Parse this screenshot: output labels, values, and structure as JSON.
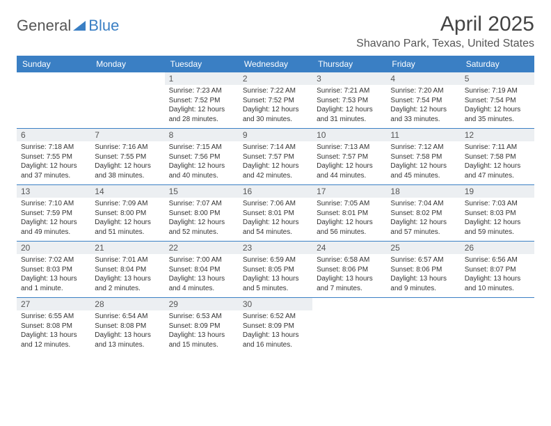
{
  "logo": {
    "part1": "General",
    "part2": "Blue"
  },
  "title": "April 2025",
  "location": "Shavano Park, Texas, United States",
  "colors": {
    "header_bg": "#3a7fc4",
    "header_fg": "#ffffff",
    "daynum_bg": "#eceff2",
    "text": "#333333",
    "rule": "#3a7fc4"
  },
  "layout": {
    "columns": 7,
    "col_width_pct": 14.28,
    "font_family": "Arial",
    "title_fontsize": 30,
    "location_fontsize": 16,
    "th_fontsize": 12,
    "cell_fontsize": 10
  },
  "weekdays": [
    "Sunday",
    "Monday",
    "Tuesday",
    "Wednesday",
    "Thursday",
    "Friday",
    "Saturday"
  ],
  "leading_blanks": 2,
  "days": [
    {
      "n": 1,
      "sunrise": "7:23 AM",
      "sunset": "7:52 PM",
      "daylight": "12 hours and 28 minutes."
    },
    {
      "n": 2,
      "sunrise": "7:22 AM",
      "sunset": "7:52 PM",
      "daylight": "12 hours and 30 minutes."
    },
    {
      "n": 3,
      "sunrise": "7:21 AM",
      "sunset": "7:53 PM",
      "daylight": "12 hours and 31 minutes."
    },
    {
      "n": 4,
      "sunrise": "7:20 AM",
      "sunset": "7:54 PM",
      "daylight": "12 hours and 33 minutes."
    },
    {
      "n": 5,
      "sunrise": "7:19 AM",
      "sunset": "7:54 PM",
      "daylight": "12 hours and 35 minutes."
    },
    {
      "n": 6,
      "sunrise": "7:18 AM",
      "sunset": "7:55 PM",
      "daylight": "12 hours and 37 minutes."
    },
    {
      "n": 7,
      "sunrise": "7:16 AM",
      "sunset": "7:55 PM",
      "daylight": "12 hours and 38 minutes."
    },
    {
      "n": 8,
      "sunrise": "7:15 AM",
      "sunset": "7:56 PM",
      "daylight": "12 hours and 40 minutes."
    },
    {
      "n": 9,
      "sunrise": "7:14 AM",
      "sunset": "7:57 PM",
      "daylight": "12 hours and 42 minutes."
    },
    {
      "n": 10,
      "sunrise": "7:13 AM",
      "sunset": "7:57 PM",
      "daylight": "12 hours and 44 minutes."
    },
    {
      "n": 11,
      "sunrise": "7:12 AM",
      "sunset": "7:58 PM",
      "daylight": "12 hours and 45 minutes."
    },
    {
      "n": 12,
      "sunrise": "7:11 AM",
      "sunset": "7:58 PM",
      "daylight": "12 hours and 47 minutes."
    },
    {
      "n": 13,
      "sunrise": "7:10 AM",
      "sunset": "7:59 PM",
      "daylight": "12 hours and 49 minutes."
    },
    {
      "n": 14,
      "sunrise": "7:09 AM",
      "sunset": "8:00 PM",
      "daylight": "12 hours and 51 minutes."
    },
    {
      "n": 15,
      "sunrise": "7:07 AM",
      "sunset": "8:00 PM",
      "daylight": "12 hours and 52 minutes."
    },
    {
      "n": 16,
      "sunrise": "7:06 AM",
      "sunset": "8:01 PM",
      "daylight": "12 hours and 54 minutes."
    },
    {
      "n": 17,
      "sunrise": "7:05 AM",
      "sunset": "8:01 PM",
      "daylight": "12 hours and 56 minutes."
    },
    {
      "n": 18,
      "sunrise": "7:04 AM",
      "sunset": "8:02 PM",
      "daylight": "12 hours and 57 minutes."
    },
    {
      "n": 19,
      "sunrise": "7:03 AM",
      "sunset": "8:03 PM",
      "daylight": "12 hours and 59 minutes."
    },
    {
      "n": 20,
      "sunrise": "7:02 AM",
      "sunset": "8:03 PM",
      "daylight": "13 hours and 1 minute."
    },
    {
      "n": 21,
      "sunrise": "7:01 AM",
      "sunset": "8:04 PM",
      "daylight": "13 hours and 2 minutes."
    },
    {
      "n": 22,
      "sunrise": "7:00 AM",
      "sunset": "8:04 PM",
      "daylight": "13 hours and 4 minutes."
    },
    {
      "n": 23,
      "sunrise": "6:59 AM",
      "sunset": "8:05 PM",
      "daylight": "13 hours and 5 minutes."
    },
    {
      "n": 24,
      "sunrise": "6:58 AM",
      "sunset": "8:06 PM",
      "daylight": "13 hours and 7 minutes."
    },
    {
      "n": 25,
      "sunrise": "6:57 AM",
      "sunset": "8:06 PM",
      "daylight": "13 hours and 9 minutes."
    },
    {
      "n": 26,
      "sunrise": "6:56 AM",
      "sunset": "8:07 PM",
      "daylight": "13 hours and 10 minutes."
    },
    {
      "n": 27,
      "sunrise": "6:55 AM",
      "sunset": "8:08 PM",
      "daylight": "13 hours and 12 minutes."
    },
    {
      "n": 28,
      "sunrise": "6:54 AM",
      "sunset": "8:08 PM",
      "daylight": "13 hours and 13 minutes."
    },
    {
      "n": 29,
      "sunrise": "6:53 AM",
      "sunset": "8:09 PM",
      "daylight": "13 hours and 15 minutes."
    },
    {
      "n": 30,
      "sunrise": "6:52 AM",
      "sunset": "8:09 PM",
      "daylight": "13 hours and 16 minutes."
    }
  ],
  "labels": {
    "sunrise": "Sunrise:",
    "sunset": "Sunset:",
    "daylight": "Daylight:"
  }
}
